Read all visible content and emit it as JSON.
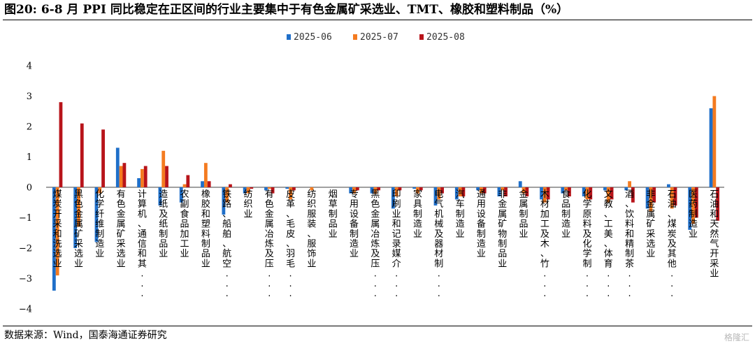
{
  "title": "图20:  6-8 月 PPI 同比稳定在正区间的行业主要集中于有色金属矿采选业、TMT、橡胶和塑料制品（%）",
  "source": "数据来源：Wind，国泰海通证券研究",
  "watermark": "格隆汇",
  "colors": {
    "s1": "#1f6fc9",
    "s2": "#f47b20",
    "s3": "#b8141a"
  },
  "chart_data": {
    "type": "bar",
    "title": "",
    "xlabel": "",
    "ylabel": "",
    "ylim": [
      -4,
      4
    ],
    "yticks": [
      -4,
      -3,
      -2,
      -1,
      0,
      1,
      2,
      3,
      4
    ],
    "legend_position": "top-center",
    "categories": [
      "煤炭开采和洗选业",
      "黑色金属矿采选业",
      "化学纤维制造业",
      "有色金属矿采选业",
      "计算机、通信和其...",
      "造纸及纸制品业",
      "农副食品加工业",
      "橡胶和塑料制品业",
      "铁路、船舶、航空...",
      "纺织业",
      "有色金属冶炼及压...",
      "皮革、毛皮、羽毛...",
      "纺织服装、服饰业",
      "烟草制品业",
      "专用设备制造业",
      "黑色金属冶炼及压...",
      "印刷业和记录媒介...",
      "家具制造业",
      "电气机械及器材制...",
      "汽车制造业",
      "通用设备制造业",
      "非金属矿物制品业",
      "金属制品业",
      "木材加工及木、竹...",
      "食品制造业",
      "化学原料及化学制...",
      "文教、工美、体育...",
      "酒、饮料和精制茶...",
      "非金属矿采选业",
      "石油、煤炭及其他...",
      "医药制造业",
      "石油和天然气开采业"
    ],
    "series": [
      {
        "name": "2025-06",
        "values": [
          -3.4,
          -2.0,
          -1.8,
          1.3,
          0.3,
          -0.6,
          -0.5,
          0.2,
          -0.9,
          -0.2,
          -0.1,
          -0.05,
          0,
          0,
          -0.2,
          -0.2,
          -0.7,
          -0.05,
          -0.6,
          -0.4,
          -0.1,
          -0.3,
          0.2,
          -0.4,
          -0.2,
          -0.3,
          -0.1,
          -0.1,
          -0.7,
          0.1,
          -1.4,
          2.6
        ]
      },
      {
        "name": "2025-07",
        "values": [
          -2.9,
          -1.3,
          -0.2,
          0.7,
          0.6,
          1.2,
          0.1,
          0.8,
          -0.5,
          -0.2,
          -0.05,
          -0.4,
          -0.1,
          0,
          -0.2,
          -0.2,
          -0.3,
          -0.2,
          -0.4,
          -0.3,
          -0.2,
          -0.1,
          -0.2,
          -0.5,
          -0.1,
          -0.4,
          -0.5,
          0.2,
          -0.8,
          -0.7,
          -1.2,
          3.0
        ]
      },
      {
        "name": "2025-08",
        "values": [
          2.8,
          2.1,
          1.9,
          0.8,
          0.7,
          0.7,
          0.4,
          0.2,
          0.1,
          -0.05,
          -0.2,
          -0.1,
          0,
          0,
          -0.1,
          -0.1,
          -0.1,
          -0.1,
          -0.2,
          -0.3,
          -0.2,
          -0.3,
          -0.3,
          -0.4,
          -0.3,
          -0.4,
          -0.4,
          -0.5,
          -0.5,
          -0.6,
          -1.0,
          -1.1
        ]
      }
    ]
  }
}
